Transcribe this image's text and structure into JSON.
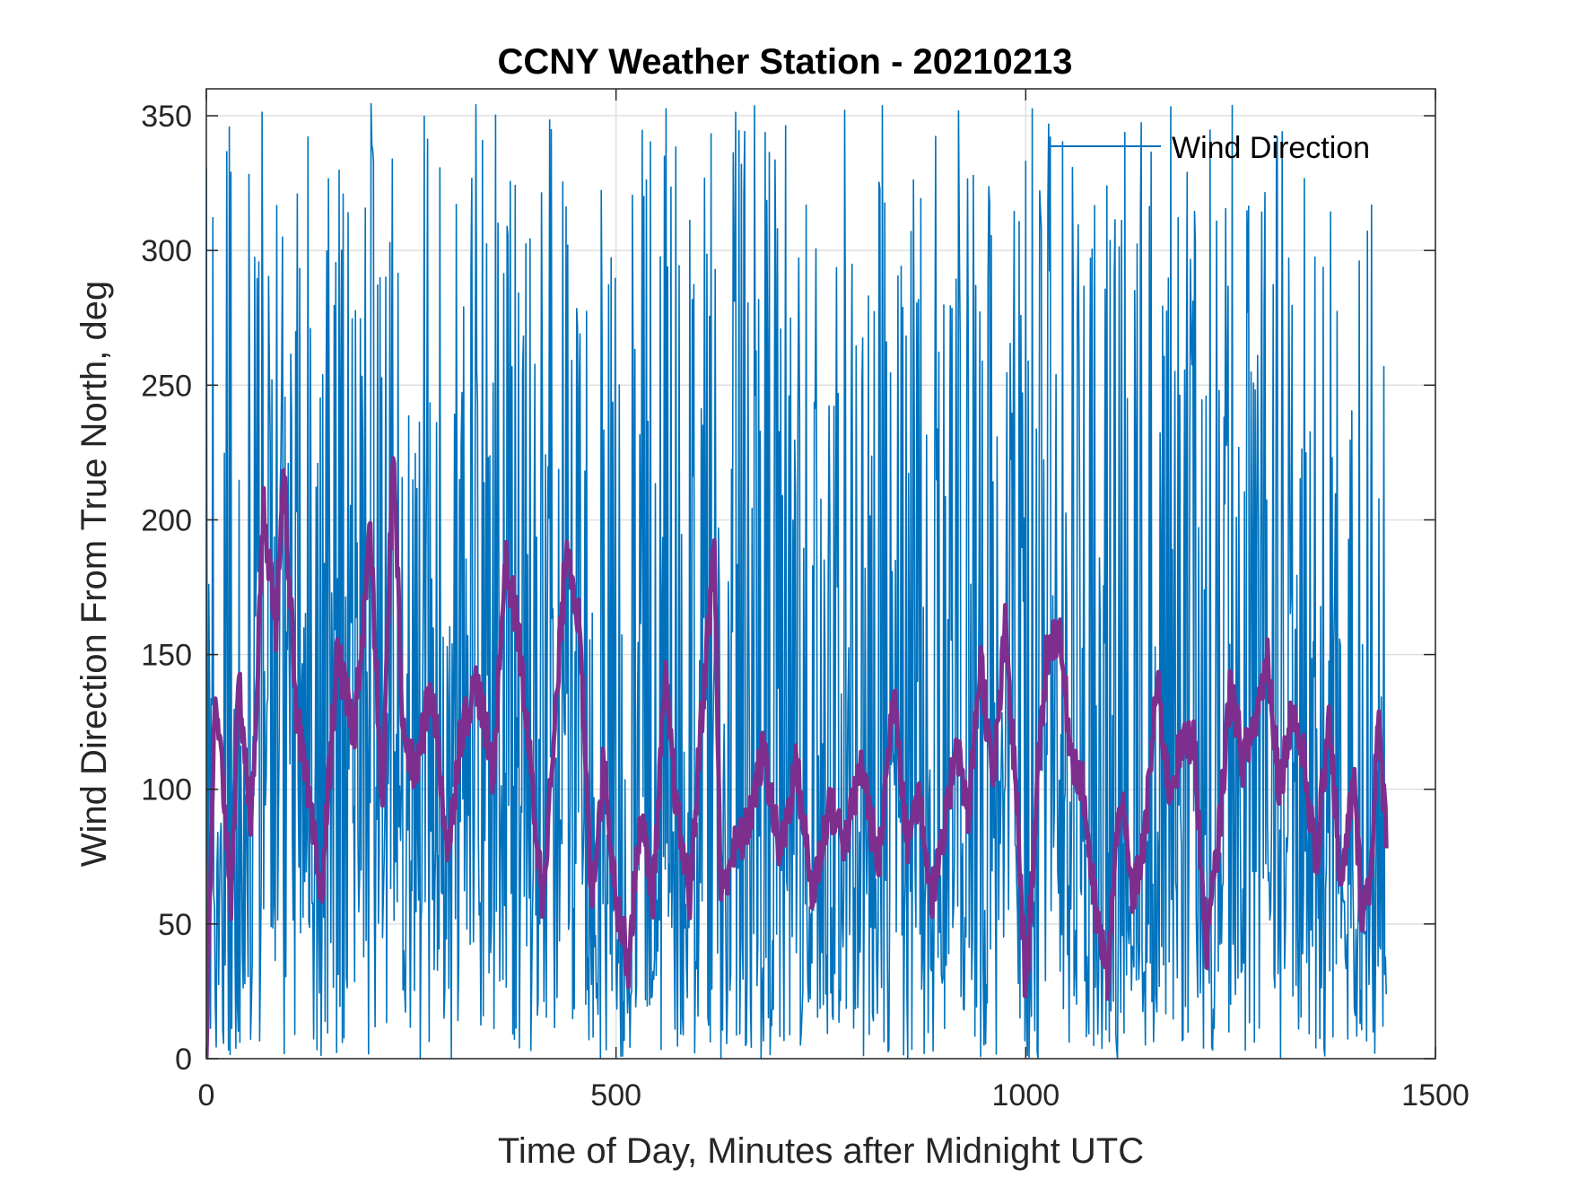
{
  "chart_data": {
    "type": "line",
    "title": "CCNY Weather Station - 20210213",
    "xlabel": "Time of Day, Minutes after Midnight UTC",
    "ylabel": "Wind Direction From True North, deg",
    "xlim": [
      0,
      1500
    ],
    "ylim": [
      0,
      360
    ],
    "xticks": [
      0,
      500,
      1000,
      1500
    ],
    "yticks": [
      0,
      50,
      100,
      150,
      200,
      250,
      300,
      350
    ],
    "grid": true,
    "legend": {
      "position": "top-right",
      "entries": [
        "Wind Direction"
      ]
    },
    "series": [
      {
        "name": "Wind Direction",
        "color": "#0072BD",
        "x_range": [
          0,
          1440
        ],
        "y_range": [
          0,
          355
        ],
        "note_kind": "raw 1-minute samples"
      },
      {
        "color": "#7E2F8E",
        "x": [
          0,
          10,
          20,
          30,
          40,
          55,
          70,
          85,
          95,
          110,
          125,
          140,
          160,
          180,
          200,
          215,
          228,
          240,
          255,
          275,
          295,
          310,
          330,
          350,
          365,
          380,
          395,
          410,
          425,
          440,
          455,
          470,
          485,
          500,
          515,
          530,
          545,
          560,
          575,
          590,
          605,
          620,
          628,
          640,
          660,
          680,
          700,
          720,
          740,
          760,
          780,
          800,
          820,
          840,
          855,
          870,
          885,
          900,
          915,
          930,
          945,
          960,
          975,
          990,
          1000,
          1010,
          1025,
          1040,
          1055,
          1070,
          1085,
          1100,
          1115,
          1130,
          1145,
          1160,
          1175,
          1190,
          1205,
          1220,
          1235,
          1250,
          1265,
          1280,
          1295,
          1310,
          1325,
          1340,
          1355,
          1370,
          1385,
          1400,
          1410,
          1420,
          1430,
          1440
        ],
        "y": [
          2,
          130,
          105,
          60,
          140,
          85,
          205,
          160,
          215,
          130,
          95,
          60,
          150,
          120,
          195,
          90,
          230,
          120,
          105,
          140,
          75,
          120,
          140,
          105,
          185,
          160,
          110,
          60,
          120,
          195,
          160,
          60,
          110,
          60,
          35,
          90,
          60,
          140,
          90,
          60,
          130,
          190,
          60,
          75,
          85,
          115,
          75,
          110,
          60,
          95,
          80,
          110,
          70,
          140,
          80,
          100,
          60,
          80,
          120,
          90,
          150,
          100,
          160,
          90,
          25,
          80,
          150,
          160,
          115,
          100,
          55,
          30,
          100,
          60,
          80,
          140,
          100,
          115,
          120,
          40,
          80,
          140,
          110,
          125,
          150,
          100,
          130,
          110,
          70,
          130,
          60,
          105,
          55,
          65,
          125,
          85
        ]
      }
    ]
  }
}
